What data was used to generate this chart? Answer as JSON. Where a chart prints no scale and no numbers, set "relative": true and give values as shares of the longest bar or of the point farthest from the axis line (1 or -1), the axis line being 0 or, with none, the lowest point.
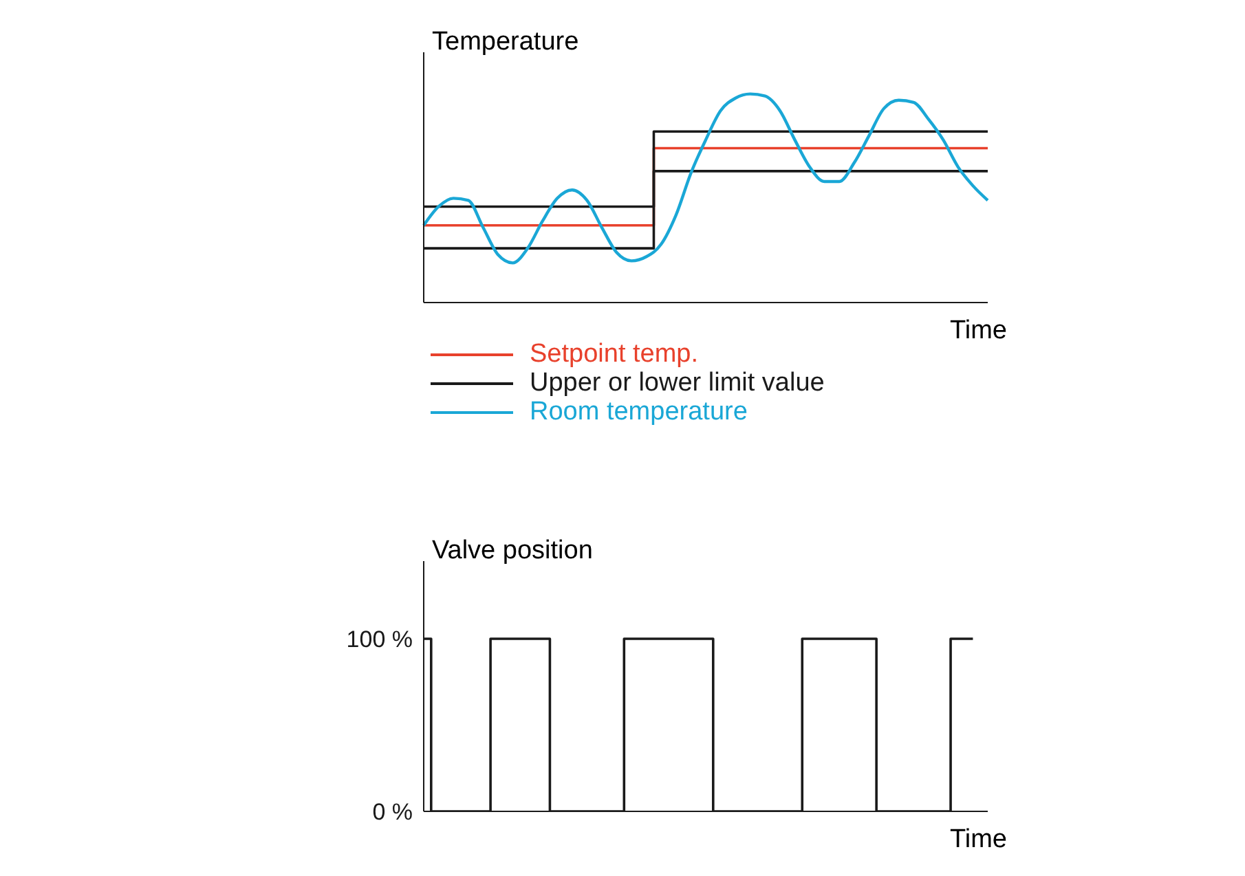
{
  "chart_data": [
    {
      "type": "line",
      "relative": true,
      "ylabel": "Temperature",
      "xlabel": "Time",
      "tick_labels": false,
      "grid": false,
      "legend": "bottom",
      "marker": "none",
      "line_style": "solid",
      "categories": [
        null,
        null,
        null,
        null,
        null,
        null,
        null,
        null,
        null,
        null,
        null,
        null,
        null,
        null,
        null,
        null,
        null,
        null,
        null,
        null,
        null,
        null,
        null,
        null,
        null,
        null,
        null,
        null,
        null,
        null,
        null,
        null,
        null,
        null,
        null,
        null,
        null,
        null,
        null
      ],
      "series": [
        {
          "type": "step",
          "name": "Setpoint temp.",
          "color": "#e8412c",
          "values": [
            0.37,
            0.37,
            0.37,
            0.37,
            0.37,
            0.37,
            0.37,
            0.37,
            0.37,
            0.37,
            0.37,
            0.37,
            0.37,
            0.37,
            0.37,
            0.37,
            0.74,
            0.74,
            0.74,
            0.74,
            0.74,
            0.74,
            0.74,
            0.74,
            0.74,
            0.74,
            0.74,
            0.74,
            0.74,
            0.74,
            0.74,
            0.74,
            0.74,
            0.74,
            0.74,
            0.74,
            0.74,
            0.74,
            0.74
          ]
        },
        {
          "type": "step",
          "name": "Upper or lower limit value",
          "color": "#1a1a1a",
          "values": [
            0.46,
            0.46,
            0.46,
            0.46,
            0.46,
            0.46,
            0.46,
            0.46,
            0.46,
            0.46,
            0.46,
            0.46,
            0.46,
            0.46,
            0.46,
            0.46,
            0.82,
            0.82,
            0.82,
            0.82,
            0.82,
            0.82,
            0.82,
            0.82,
            0.82,
            0.82,
            0.82,
            0.82,
            0.82,
            0.82,
            0.82,
            0.82,
            0.82,
            0.82,
            0.82,
            0.82,
            0.82,
            0.82,
            0.82
          ]
        },
        {
          "type": "step",
          "color": "#1a1a1a",
          "values": [
            0.26,
            0.26,
            0.26,
            0.26,
            0.26,
            0.26,
            0.26,
            0.26,
            0.26,
            0.26,
            0.26,
            0.26,
            0.26,
            0.26,
            0.26,
            0.26,
            0.63,
            0.63,
            0.63,
            0.63,
            0.63,
            0.63,
            0.63,
            0.63,
            0.63,
            0.63,
            0.63,
            0.63,
            0.63,
            0.63,
            0.63,
            0.63,
            0.63,
            0.63,
            0.63,
            0.63,
            0.63,
            0.63,
            0.63
          ]
        },
        {
          "type": "line",
          "name": "Room temperature",
          "color": "#1aa7d6",
          "values": [
            0.37,
            0.46,
            0.5,
            0.49,
            0.36,
            0.23,
            0.19,
            0.26,
            0.39,
            0.5,
            0.54,
            0.49,
            0.36,
            0.24,
            0.2,
            0.22,
            0.28,
            0.42,
            0.62,
            0.78,
            0.92,
            0.98,
            1,
            0.99,
            0.92,
            0.78,
            0.65,
            0.58,
            0.58,
            0.67,
            0.8,
            0.93,
            0.97,
            0.96,
            0.88,
            0.78,
            0.65,
            0.56,
            0.49
          ]
        }
      ]
    },
    {
      "type": "step",
      "ylabel": "Valve position",
      "xlabel": "Time",
      "tick_labels": "y",
      "grid": false,
      "legend": false,
      "marker": "none",
      "line_style": "solid",
      "ylim": [
        0,
        145
      ],
      "yticks": [
        {
          "value": 0,
          "label": "0 %"
        },
        {
          "value": 100,
          "label": "100 %"
        }
      ],
      "categories": [
        null,
        null,
        null,
        null,
        null,
        null,
        null,
        null,
        null,
        null,
        null,
        null,
        null,
        null,
        null,
        null,
        null,
        null,
        null,
        null,
        null,
        null,
        null,
        null,
        null,
        null,
        null,
        null,
        null,
        null,
        null,
        null,
        null,
        null,
        null,
        null,
        null,
        null,
        null
      ],
      "series": [
        {
          "color": "#1a1a1a",
          "values": [
            100,
            0,
            0,
            0,
            0,
            100,
            100,
            100,
            100,
            0,
            0,
            0,
            0,
            0,
            100,
            100,
            100,
            100,
            100,
            100,
            0,
            0,
            0,
            0,
            0,
            0,
            100,
            100,
            100,
            100,
            100,
            0,
            0,
            0,
            0,
            0,
            100,
            100,
            null
          ]
        }
      ]
    }
  ]
}
